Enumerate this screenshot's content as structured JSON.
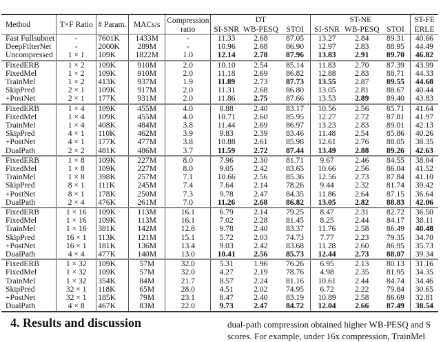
{
  "table": {
    "headers": {
      "method": "Method",
      "ratio": "T×F Ratio",
      "params": "# Param.",
      "macs": "MACs/s",
      "compression": "Compression ratio",
      "dt": "DT",
      "st_ne": "ST-NE",
      "st_fe": "ST-FE",
      "si_snr": "SI-SNR",
      "wb_pesq": "WB-PESQ",
      "stoi": "STOI",
      "erle": "ERLE"
    },
    "groups": [
      [
        {
          "cells": [
            "Fast Fullsubnet",
            "-",
            "7601K",
            "1433M",
            "-",
            "11.33",
            "2.68",
            "87.05",
            "13.27",
            "2.84",
            "89.31",
            "40.66"
          ],
          "bold": []
        },
        {
          "cells": [
            "DeepFilterNet",
            "-",
            "2000K",
            "289M",
            "-",
            "10.96",
            "2.68",
            "86.90",
            "12.97",
            "2.83",
            "88.95",
            "44.49"
          ],
          "bold": []
        },
        {
          "cells": [
            "Uncompressed",
            "1 × 1",
            "109K",
            "1822M",
            "1.0",
            "12.14",
            "2.78",
            "87.96",
            "13.83",
            "2.91",
            "89.70",
            "46.82"
          ],
          "bold": [
            5,
            6,
            7,
            8,
            9,
            10,
            11
          ]
        }
      ],
      [
        {
          "cells": [
            "FixedERB",
            "1 × 2",
            "109K",
            "910M",
            "2.0",
            "10.10",
            "2.54",
            "85.14",
            "11.83",
            "2.70",
            "87.39",
            "43.99"
          ],
          "bold": []
        },
        {
          "cells": [
            "FixedMel",
            "1 × 2",
            "109K",
            "910M",
            "2.0",
            "11.18",
            "2.69",
            "86.82",
            "12.88",
            "2.83",
            "88.71",
            "44.33"
          ],
          "bold": []
        },
        {
          "cells": [
            "TrainMel",
            "1 × 2",
            "413K",
            "937M",
            "1.9",
            "11.89",
            "2.73",
            "87.73",
            "13.55",
            "2.87",
            "89.55",
            "44.68"
          ],
          "bold": [
            5,
            7,
            8,
            10,
            11
          ]
        },
        {
          "cells": [
            "SkipPred",
            "2 × 1",
            "109K",
            "917M",
            "2.0",
            "11.31",
            "2.68",
            "86.80",
            "13.05",
            "2.81",
            "88.67",
            "40.44"
          ],
          "bold": []
        },
        {
          "cells": [
            "+PostNet",
            "2 × 1",
            "177K",
            "931M",
            "2.0",
            "11.86",
            "2.75",
            "87.66",
            "13.53",
            "2.89",
            "89.40",
            "43.83"
          ],
          "bold": [
            6,
            9
          ]
        }
      ],
      [
        {
          "cells": [
            "FixedERB",
            "1 × 4",
            "109K",
            "455M",
            "4.0",
            "8.88",
            "2.40",
            "83.17",
            "10.56",
            "2.56",
            "85.71",
            "41.64"
          ],
          "bold": []
        },
        {
          "cells": [
            "FixedMel",
            "1 × 4",
            "109K",
            "455M",
            "4.0",
            "10.71",
            "2.60",
            "85.95",
            "12.27",
            "2.72",
            "87.81",
            "41.97"
          ],
          "bold": []
        },
        {
          "cells": [
            "TrainMel",
            "1 × 4",
            "408K",
            "484M",
            "3.8",
            "11.44",
            "2.69",
            "86.97",
            "13.23",
            "2.83",
            "89.01",
            "42.13"
          ],
          "bold": []
        },
        {
          "cells": [
            "SkipPred",
            "4 × 1",
            "110K",
            "462M",
            "3.9",
            "9.83",
            "2.39",
            "83.46",
            "11.48",
            "2.54",
            "85.86",
            "40.26"
          ],
          "bold": []
        },
        {
          "cells": [
            "+PostNet",
            "4 × 1",
            "177K",
            "477M",
            "3.8",
            "10.88",
            "2.61",
            "85.98",
            "12.61",
            "2.76",
            "88.05",
            "38.35"
          ],
          "bold": []
        },
        {
          "cells": [
            "DualPath",
            "2 × 2",
            "481K",
            "486M",
            "3.7",
            "11.59",
            "2.72",
            "87.44",
            "13.49",
            "2.88",
            "89.26",
            "42.63"
          ],
          "bold": [
            5,
            6,
            7,
            8,
            9,
            10,
            11
          ]
        }
      ],
      [
        {
          "cells": [
            "FixedERB",
            "1 × 8",
            "109K",
            "227M",
            "8.0",
            "7.96",
            "2.30",
            "81.71",
            "9.67",
            "2.46",
            "84.55",
            "38.04"
          ],
          "bold": []
        },
        {
          "cells": [
            "FixedMel",
            "1 × 8",
            "109K",
            "227M",
            "8.0",
            "9.05",
            "2.42",
            "83.65",
            "10.66",
            "2.56",
            "86.04",
            "41.52"
          ],
          "bold": []
        },
        {
          "cells": [
            "TrainMel",
            "1 × 8",
            "398K",
            "257M",
            "7.1",
            "10.66",
            "2.56",
            "85.36",
            "12.56",
            "2.73",
            "87.84",
            "41.10"
          ],
          "bold": []
        },
        {
          "cells": [
            "SkipPred",
            "8 × 1",
            "111K",
            "245M",
            "7.4",
            "7.64",
            "2.14",
            "78.26",
            "9.44",
            "2.32",
            "81.74",
            "39.42"
          ],
          "bold": []
        },
        {
          "cells": [
            "+PostNet",
            "8 × 1",
            "178K",
            "250M",
            "7.3",
            "9.78",
            "2.47",
            "84.35",
            "11.86",
            "2.64",
            "87.15",
            "36.64"
          ],
          "bold": []
        },
        {
          "cells": [
            "DualPath",
            "2 × 4",
            "476K",
            "261M",
            "7.0",
            "11.26",
            "2.68",
            "86.82",
            "13.05",
            "2.82",
            "88.83",
            "42.06"
          ],
          "bold": [
            5,
            6,
            7,
            8,
            9,
            10,
            11
          ]
        }
      ],
      [
        {
          "cells": [
            "FixedERB",
            "1 × 16",
            "109K",
            "113M",
            "16.1",
            "6.79",
            "2.14",
            "79.25",
            "8.47",
            "2.31",
            "82.72",
            "36.50"
          ],
          "bold": []
        },
        {
          "cells": [
            "FixedMel",
            "1 × 16",
            "109K",
            "113M",
            "16.1",
            "7.02",
            "2.28",
            "81.45",
            "8.25",
            "2.44",
            "84.17",
            "38.11"
          ],
          "bold": []
        },
        {
          "cells": [
            "TrainMel",
            "1 × 16",
            "381K",
            "142M",
            "12.8",
            "9.78",
            "2.40",
            "83.37",
            "11.76",
            "2.58",
            "86.49",
            "40.48"
          ],
          "bold": [
            11
          ]
        },
        {
          "cells": [
            "SkipPred",
            "16 × 1",
            "113K",
            "121M",
            "15.1",
            "5.72",
            "2.03",
            "74.73",
            "7.77",
            "2.23",
            "79.35",
            "34.70"
          ],
          "bold": []
        },
        {
          "cells": [
            "+PostNet",
            "16 × 1",
            "181K",
            "136M",
            "13.4",
            "9.03",
            "2.42",
            "83.68",
            "11.28",
            "2.60",
            "86.95",
            "35.73"
          ],
          "bold": []
        },
        {
          "cells": [
            "DualPath",
            "4 × 4",
            "477K",
            "140M",
            "13.0",
            "10.41",
            "2.56",
            "85.73",
            "12.44",
            "2.73",
            "88.07",
            "39.34"
          ],
          "bold": [
            5,
            6,
            7,
            8,
            9,
            10
          ]
        }
      ],
      [
        {
          "cells": [
            "FixedERB",
            "1 × 32",
            "109K",
            "57M",
            "32.0",
            "5.31",
            "1.96",
            "76.26",
            "6.95",
            "2.13",
            "80.13",
            "31.16"
          ],
          "bold": []
        },
        {
          "cells": [
            "FixedMel",
            "1 × 32",
            "109K",
            "57M",
            "32.0",
            "4.27",
            "2.19",
            "78.76",
            "4.98",
            "2.35",
            "81.95",
            "34.35"
          ],
          "bold": []
        },
        {
          "cells": [
            "TrainMel",
            "1 × 32",
            "354K",
            "84M",
            "21.7",
            "8.57",
            "2.24",
            "81.16",
            "10.61",
            "2.44",
            "84.74",
            "34.46"
          ],
          "bold": []
        },
        {
          "cells": [
            "SkipPred",
            "32 × 1",
            "118K",
            "65M",
            "28.0",
            "4.51",
            "2.02",
            "74.95",
            "6.72",
            "2.22",
            "79.84",
            "30.65"
          ],
          "bold": []
        },
        {
          "cells": [
            "+PostNet",
            "32 × 1",
            "185K",
            "79M",
            "23.1",
            "8.47",
            "2.40",
            "83.19",
            "10.89",
            "2.58",
            "86.69",
            "32.81"
          ],
          "bold": []
        },
        {
          "cells": [
            "DualPath",
            "4 × 8",
            "467K",
            "83M",
            "22.0",
            "9.73",
            "2.47",
            "84.72",
            "12.04",
            "2.66",
            "87.49",
            "38.54"
          ],
          "bold": [
            5,
            6,
            7,
            8,
            9,
            10,
            11
          ]
        }
      ]
    ]
  },
  "section": {
    "heading": "4.  Results and discussion"
  },
  "body_text": {
    "line1": "dual-path compression obtained higher WB-PESQ and S",
    "line2": "scores. For example, under 16x compression, TrainMel"
  }
}
